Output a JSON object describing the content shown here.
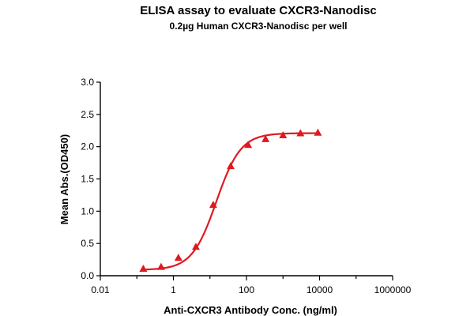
{
  "chart_data": {
    "type": "scatter",
    "title": "ELISA assay to evaluate CXCR3-Nanodisc",
    "subtitle": "0.2µg Human CXCR3-Nanodisc per well",
    "xlabel": "Anti-CXCR3 Antibody Conc. (ng/ml)",
    "ylabel": "Mean Abs.(OD450)",
    "x_scale": "log",
    "xlim": [
      0.01,
      1000000
    ],
    "ylim": [
      0,
      3.0
    ],
    "x_ticks": [
      0.01,
      1,
      100,
      10000,
      1000000
    ],
    "x_tick_labels": [
      "0.01",
      "1",
      "100",
      "10000",
      "1000000"
    ],
    "y_ticks": [
      0.0,
      0.5,
      1.0,
      1.5,
      2.0,
      2.5,
      3.0
    ],
    "y_tick_labels": [
      "0.0",
      "0.5",
      "1.0",
      "1.5",
      "2.0",
      "2.5",
      "3.0"
    ],
    "grid": false,
    "legend": "none",
    "series": [
      {
        "marker": "triangle",
        "color": "#e0191f",
        "x": [
          0.15,
          0.46,
          1.37,
          4.12,
          12.3,
          37.0,
          111,
          333,
          1000,
          3000,
          9000
        ],
        "y": [
          0.11,
          0.14,
          0.28,
          0.45,
          1.1,
          1.7,
          2.03,
          2.12,
          2.18,
          2.21,
          2.22
        ]
      }
    ],
    "fit_curve": {
      "model": "4PL",
      "color": "#e0191f",
      "bottom": 0.09,
      "top": 2.21,
      "ec50": 15,
      "hill": 1.3
    }
  }
}
